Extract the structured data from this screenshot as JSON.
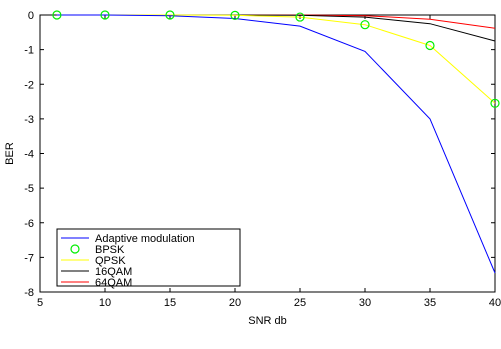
{
  "chart_data": {
    "type": "line",
    "xlabel": "SNR db",
    "ylabel": "BER",
    "xlim": [
      5,
      40
    ],
    "ylim": [
      -8,
      0
    ],
    "xticks": [
      5,
      10,
      15,
      20,
      25,
      30,
      35,
      40
    ],
    "yticks": [
      0,
      -1,
      -2,
      -3,
      -4,
      -5,
      -6,
      -7,
      -8
    ],
    "grid": false,
    "legend_position": "bottom-left",
    "series": [
      {
        "name": "Adaptive modulation",
        "color": "#0000ff",
        "style": "line",
        "x": [
          6.3,
          10,
          15,
          20,
          25,
          30,
          35,
          40
        ],
        "y": [
          0,
          0,
          -0.02,
          -0.1,
          -0.32,
          -1.05,
          -3.0,
          -7.45
        ]
      },
      {
        "name": "BPSK",
        "color": "#00ee00",
        "style": "marker-circle",
        "x": [
          6.3,
          10,
          15,
          20,
          25,
          30,
          35,
          40
        ],
        "y": [
          0,
          0,
          0,
          -0.01,
          -0.06,
          -0.28,
          -0.88,
          -2.55
        ]
      },
      {
        "name": "QPSK",
        "color": "#ffff00",
        "style": "line",
        "x": [
          6.3,
          10,
          15,
          20,
          25,
          30,
          35,
          40
        ],
        "y": [
          0,
          0,
          0,
          -0.01,
          -0.06,
          -0.28,
          -0.88,
          -2.55
        ]
      },
      {
        "name": "16QAM",
        "color": "#000000",
        "style": "line",
        "x": [
          6.3,
          10,
          15,
          20,
          25,
          30,
          35,
          40
        ],
        "y": [
          0,
          0,
          0,
          0,
          -0.01,
          -0.06,
          -0.25,
          -0.75
        ]
      },
      {
        "name": "64QAM",
        "color": "#ff0000",
        "style": "line",
        "x": [
          6.3,
          10,
          15,
          20,
          25,
          30,
          35,
          40
        ],
        "y": [
          0,
          0,
          0,
          0,
          0,
          -0.02,
          -0.12,
          -0.38
        ]
      }
    ]
  }
}
